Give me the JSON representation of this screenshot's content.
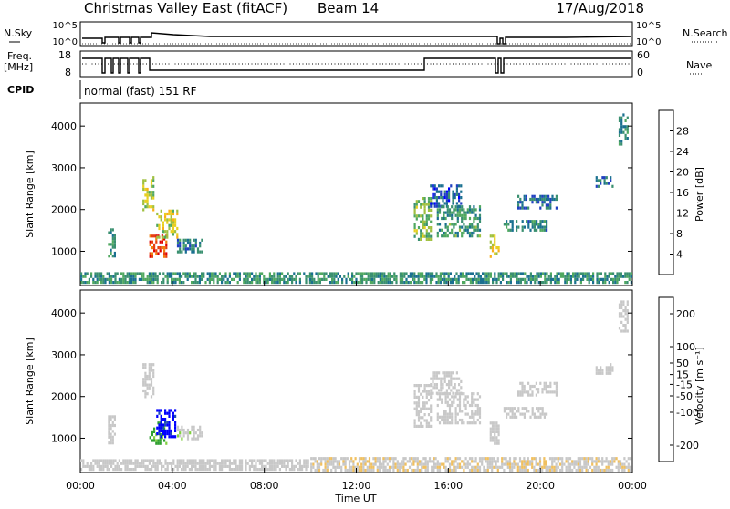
{
  "header": {
    "title": "Christmas Valley East (fitACF)",
    "beam": "Beam 14",
    "date": "17/Aug/2018"
  },
  "status_panels": {
    "nsky_label": "N.Sky",
    "nsky_ticks": [
      "10^5",
      "10^0"
    ],
    "nsearch_label": "N.Search",
    "nsearch_ticks": [
      "10^5",
      "10^0"
    ],
    "freq_label_1": "Freq.",
    "freq_label_2": "[MHz]",
    "freq_ticks": [
      "18",
      "8"
    ],
    "nave_label": "Nave",
    "nave_ticks": [
      "60",
      "0"
    ],
    "cpid_label": "CPID",
    "cpid_text": "normal (fast) 151 RF"
  },
  "chart_data": [
    {
      "type": "heatmap",
      "name": "power",
      "ylabel": "Slant Range [km]",
      "ylim": [
        180,
        4550
      ],
      "yticks": [
        "4000",
        "3000",
        "2000",
        "1000"
      ],
      "ytick_values": [
        4000,
        3000,
        2000,
        1000
      ],
      "colorbar_label": "Power [dB]",
      "colorbar_ticks": [
        "28",
        "24",
        "20",
        "16",
        "12",
        "8",
        "4"
      ],
      "colorbar_tick_values": [
        28,
        24,
        20,
        16,
        12,
        8,
        4
      ],
      "colorbar_range": [
        0,
        32
      ],
      "colors": [
        "#0000ff",
        "#2040c0",
        "#1a7090",
        "#3a9070",
        "#50a860",
        "#a0c040",
        "#e8d020",
        "#f8b018",
        "#f08010",
        "#e84010",
        "#e00000"
      ],
      "regions": [
        {
          "x0": 1.2,
          "x1": 1.6,
          "y0": 850,
          "y1": 1550,
          "v": 10
        },
        {
          "x0": 2.7,
          "x1": 3.3,
          "y0": 1900,
          "y1": 2800,
          "v": 17
        },
        {
          "x0": 3.0,
          "x1": 3.8,
          "y0": 800,
          "y1": 1400,
          "v": 27
        },
        {
          "x0": 3.3,
          "x1": 4.3,
          "y0": 1300,
          "y1": 2000,
          "v": 18
        },
        {
          "x0": 4.2,
          "x1": 5.4,
          "y0": 900,
          "y1": 1300,
          "v": 8
        },
        {
          "x0": 14.5,
          "x1": 15.3,
          "y0": 1200,
          "y1": 2300,
          "v": 14
        },
        {
          "x0": 15.2,
          "x1": 16.6,
          "y0": 2000,
          "y1": 2600,
          "v": 6
        },
        {
          "x0": 15.5,
          "x1": 17.5,
          "y0": 1300,
          "y1": 2100,
          "v": 11
        },
        {
          "x0": 17.8,
          "x1": 18.3,
          "y0": 800,
          "y1": 1400,
          "v": 18
        },
        {
          "x0": 18.4,
          "x1": 20.4,
          "y0": 1450,
          "y1": 1750,
          "v": 9
        },
        {
          "x0": 19.0,
          "x1": 20.8,
          "y0": 1950,
          "y1": 2350,
          "v": 7
        },
        {
          "x0": 22.4,
          "x1": 23.2,
          "y0": 2500,
          "y1": 2800,
          "v": 7
        },
        {
          "x0": 23.4,
          "x1": 23.9,
          "y0": 3500,
          "y1": 4300,
          "v": 10
        },
        {
          "x0": 0.0,
          "x1": 24.0,
          "y0": 180,
          "y1": 500,
          "v": 10
        }
      ]
    },
    {
      "type": "heatmap",
      "name": "velocity",
      "ylabel": "Slant Range [km]",
      "ylim": [
        180,
        4550
      ],
      "yticks": [
        "4000",
        "3000",
        "2000",
        "1000"
      ],
      "ytick_values": [
        4000,
        3000,
        2000,
        1000
      ],
      "colorbar_label": "Velocity [m s⁻¹]",
      "colorbar_ticks": [
        "200",
        "100",
        "50",
        "15",
        "-15",
        "-50",
        "-100",
        "-200"
      ],
      "colorbar_tick_values": [
        200,
        100,
        50,
        15,
        -15,
        -50,
        -100,
        -200
      ],
      "colorbar_range": [
        -250,
        250
      ],
      "colors": [
        "#e00000",
        "#f04010",
        "#f07010",
        "#f0a020",
        "#f0c060",
        "#c8c8c8",
        "#c8c8c8",
        "#80d040",
        "#30a030",
        "#208060",
        "#2050b0",
        "#0000ff"
      ],
      "regions": [
        {
          "x0": 1.2,
          "x1": 1.6,
          "y0": 850,
          "y1": 1550,
          "v": 0
        },
        {
          "x0": 2.7,
          "x1": 3.3,
          "y0": 1900,
          "y1": 2800,
          "v": 0
        },
        {
          "x0": 3.0,
          "x1": 3.8,
          "y0": 800,
          "y1": 1400,
          "v": 90
        },
        {
          "x0": 3.3,
          "x1": 4.2,
          "y0": 1000,
          "y1": 1700,
          "v": 220
        },
        {
          "x0": 4.2,
          "x1": 5.4,
          "y0": 900,
          "y1": 1300,
          "v": 40
        },
        {
          "x0": 14.5,
          "x1": 15.3,
          "y0": 1200,
          "y1": 2300,
          "v": 0
        },
        {
          "x0": 15.2,
          "x1": 16.6,
          "y0": 2000,
          "y1": 2600,
          "v": 0
        },
        {
          "x0": 15.5,
          "x1": 17.5,
          "y0": 1300,
          "y1": 2100,
          "v": 0
        },
        {
          "x0": 17.8,
          "x1": 18.3,
          "y0": 800,
          "y1": 1400,
          "v": 0
        },
        {
          "x0": 18.4,
          "x1": 20.4,
          "y0": 1450,
          "y1": 1750,
          "v": 0
        },
        {
          "x0": 19.0,
          "x1": 20.8,
          "y0": 1950,
          "y1": 2350,
          "v": 0
        },
        {
          "x0": 22.4,
          "x1": 23.2,
          "y0": 2500,
          "y1": 2800,
          "v": 0
        },
        {
          "x0": 23.4,
          "x1": 23.9,
          "y0": 3500,
          "y1": 4300,
          "v": 0
        },
        {
          "x0": 0.0,
          "x1": 10.0,
          "y0": 180,
          "y1": 500,
          "v": 30
        },
        {
          "x0": 10.0,
          "x1": 24.0,
          "y0": 180,
          "y1": 550,
          "v": -40
        }
      ]
    }
  ],
  "x_axis": {
    "label": "Time UT",
    "ticks": [
      "00:00",
      "04:00",
      "08:00",
      "12:00",
      "16:00",
      "20:00",
      "00:00"
    ],
    "tick_hours": [
      0,
      4,
      8,
      12,
      16,
      20,
      24
    ],
    "range": [
      0,
      24
    ]
  }
}
